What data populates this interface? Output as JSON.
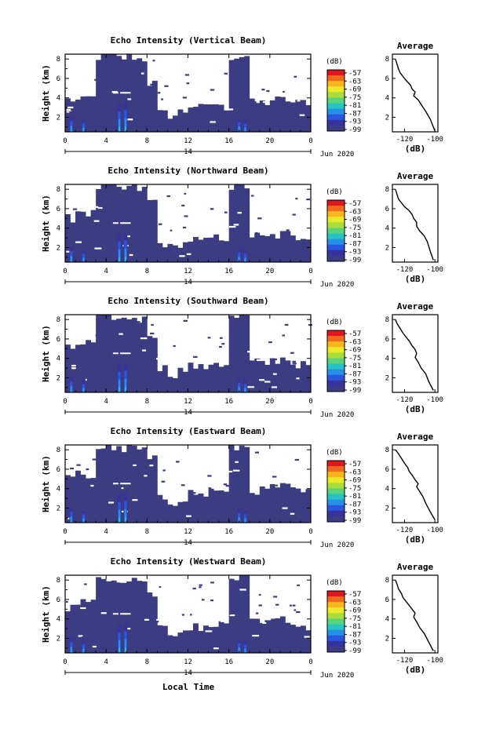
{
  "figure": {
    "xlabel": "Local Time",
    "date_label": "Jun 2020",
    "day_label": "14",
    "colorbar_unit": "(dB)",
    "colorbar_ticks": [
      "-57",
      "-63",
      "-69",
      "-75",
      "-81",
      "-87",
      "-93",
      "-99"
    ],
    "colorbar_colors": [
      "#e0181e",
      "#f06a1c",
      "#f7b51e",
      "#e9ea2a",
      "#a8dd3c",
      "#57d47c",
      "#27c3c4",
      "#2790e6",
      "#2a56df",
      "#38339c",
      "#3b3c82"
    ],
    "main_x_ticks": [
      "0",
      "4",
      "8",
      "12",
      "16",
      "20",
      "0"
    ],
    "main_y_ticks": [
      "2",
      "4",
      "6",
      "8"
    ],
    "avg_title": "Average",
    "avg_xlabel": "(dB)",
    "avg_x_ticks": [
      "-120",
      "-100"
    ],
    "avg_y_ticks": [
      "2",
      "4",
      "6",
      "8"
    ]
  },
  "chart_data": [
    {
      "type": "heatmap",
      "title": "Echo Intensity (Vertical Beam)",
      "ylabel": "Height (km)",
      "xlabel": "Local Time",
      "xlim": [
        0,
        24
      ],
      "ylim": [
        0.5,
        8.5
      ],
      "colorbar": {
        "label": "(dB)",
        "range": [
          -99,
          -57
        ]
      },
      "echo_top_km": [
        3.8,
        3.7,
        4.0,
        8.2,
        8.3,
        8.1,
        8.2,
        8.0,
        5.5,
        2.4,
        2.2,
        2.6,
        3.2,
        3.0,
        3.4,
        3.0,
        8.2,
        8.3,
        3.5,
        3.5,
        3.8,
        3.8,
        3.5,
        3.6
      ],
      "average_profile": {
        "x": [
          -126,
          -125,
          -124,
          -123,
          -121,
          -119,
          -116,
          -115,
          -113,
          -114,
          -111,
          -109,
          -106,
          -103,
          -100
        ],
        "y": [
          8.0,
          7.5,
          7.0,
          6.6,
          6.2,
          5.8,
          5.3,
          4.9,
          4.6,
          4.2,
          3.8,
          3.3,
          2.6,
          1.8,
          0.6
        ]
      }
    },
    {
      "type": "heatmap",
      "title": "Echo Intensity (Northward Beam)",
      "ylabel": "Height (km)",
      "xlabel": "Local Time",
      "xlim": [
        0,
        24
      ],
      "ylim": [
        0.5,
        8.5
      ],
      "colorbar": {
        "label": "(dB)",
        "range": [
          -99,
          -57
        ]
      },
      "echo_top_km": [
        5.0,
        5.8,
        5.5,
        8.2,
        8.3,
        8.0,
        8.2,
        8.0,
        6.8,
        2.4,
        2.0,
        2.4,
        2.8,
        2.6,
        3.0,
        3.0,
        8.2,
        8.3,
        3.2,
        3.0,
        3.2,
        3.4,
        3.0,
        3.2
      ],
      "average_profile": {
        "x": [
          -126,
          -125,
          -124,
          -122,
          -120,
          -117,
          -115,
          -114,
          -112,
          -112,
          -110,
          -107,
          -105,
          -103,
          -101
        ],
        "y": [
          8.0,
          7.5,
          7.0,
          6.6,
          6.2,
          5.8,
          5.4,
          5.0,
          4.6,
          4.2,
          3.7,
          3.2,
          2.6,
          1.6,
          0.7
        ]
      }
    },
    {
      "type": "heatmap",
      "title": "Echo Intensity (Southward Beam)",
      "ylabel": "Height (km)",
      "xlabel": "Local Time",
      "xlim": [
        0,
        24
      ],
      "ylim": [
        0.5,
        8.5
      ],
      "colorbar": {
        "label": "(dB)",
        "range": [
          -99,
          -57
        ]
      },
      "echo_top_km": [
        5.0,
        5.5,
        5.6,
        8.2,
        8.3,
        8.0,
        8.2,
        8.0,
        6.5,
        3.0,
        2.4,
        2.8,
        3.2,
        3.0,
        3.6,
        3.4,
        8.2,
        8.3,
        3.6,
        3.5,
        3.8,
        4.0,
        3.4,
        3.3
      ],
      "average_profile": {
        "x": [
          -126,
          -125,
          -123,
          -121,
          -119,
          -117,
          -115,
          -113,
          -112,
          -113,
          -111,
          -109,
          -106,
          -104,
          -101
        ],
        "y": [
          8.0,
          7.6,
          7.1,
          6.6,
          6.2,
          5.8,
          5.3,
          4.9,
          4.5,
          4.1,
          3.6,
          3.0,
          2.4,
          1.6,
          0.7
        ]
      }
    },
    {
      "type": "heatmap",
      "title": "Echo Intensity (Eastward Beam)",
      "ylabel": "Height (km)",
      "xlabel": "Local Time",
      "xlim": [
        0,
        24
      ],
      "ylim": [
        0.5,
        8.5
      ],
      "colorbar": {
        "label": "(dB)",
        "range": [
          -99,
          -57
        ]
      },
      "echo_top_km": [
        5.0,
        5.6,
        5.2,
        8.2,
        8.3,
        8.0,
        8.2,
        8.0,
        7.0,
        3.0,
        2.6,
        3.0,
        3.6,
        3.3,
        4.0,
        3.6,
        8.2,
        8.3,
        3.8,
        3.8,
        4.2,
        4.2,
        3.8,
        3.6
      ],
      "average_profile": {
        "x": [
          -126,
          -124,
          -122,
          -120,
          -118,
          -117,
          -115,
          -113,
          -111,
          -112,
          -110,
          -108,
          -106,
          -103,
          -100
        ],
        "y": [
          8.0,
          7.6,
          7.1,
          6.6,
          6.2,
          5.8,
          5.4,
          4.9,
          4.5,
          4.2,
          3.7,
          3.2,
          2.5,
          1.6,
          0.8
        ]
      }
    },
    {
      "type": "heatmap",
      "title": "Echo Intensity (Westward Beam)",
      "ylabel": "Height (km)",
      "xlabel": "Local Time",
      "xlim": [
        0,
        24
      ],
      "ylim": [
        0.5,
        8.5
      ],
      "colorbar": {
        "label": "(dB)",
        "range": [
          -99,
          -57
        ]
      },
      "echo_top_km": [
        5.2,
        5.8,
        5.6,
        8.2,
        8.3,
        8.0,
        8.2,
        8.0,
        6.5,
        3.2,
        2.6,
        2.8,
        3.2,
        3.0,
        3.6,
        3.4,
        8.2,
        8.3,
        3.6,
        3.5,
        3.8,
        4.0,
        3.4,
        3.2
      ],
      "average_profile": {
        "x": [
          -126,
          -125,
          -124,
          -122,
          -121,
          -119,
          -117,
          -115,
          -113,
          -114,
          -112,
          -110,
          -107,
          -104,
          -101
        ],
        "y": [
          8.0,
          7.6,
          7.1,
          6.6,
          6.2,
          5.8,
          5.4,
          5.0,
          4.6,
          4.2,
          3.7,
          3.1,
          2.5,
          1.6,
          0.7
        ]
      }
    }
  ]
}
